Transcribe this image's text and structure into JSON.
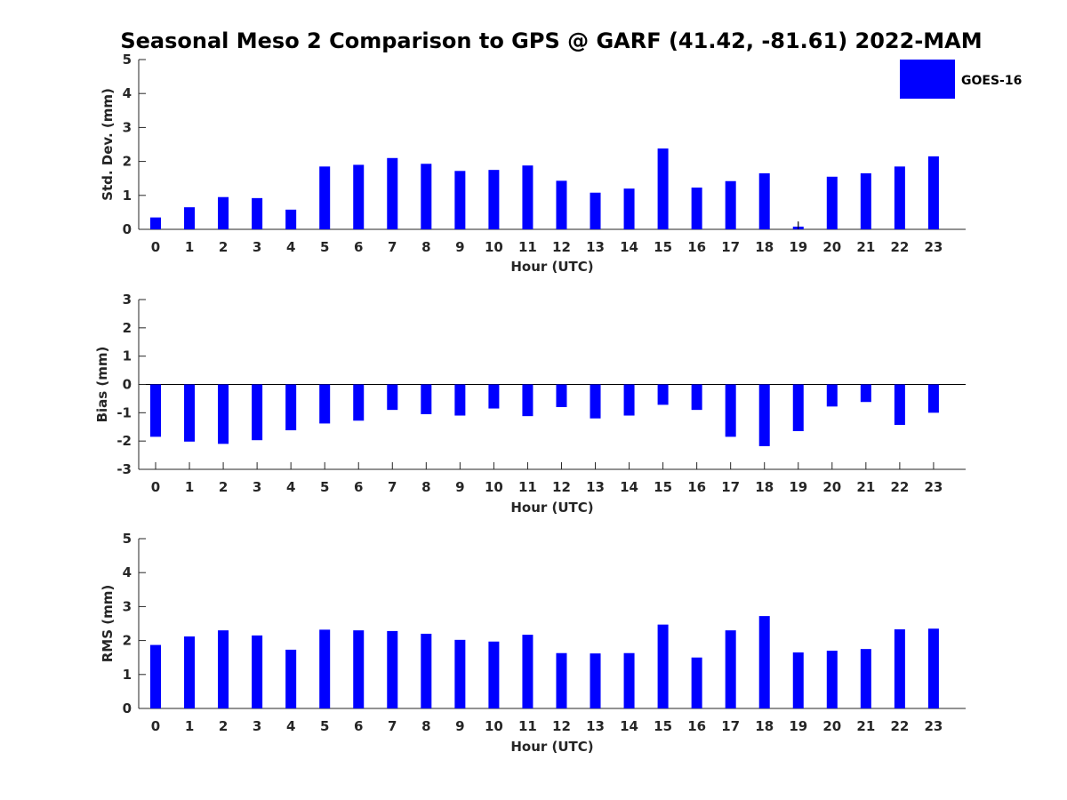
{
  "title": "Seasonal Meso 2 Comparison to GPS @ GARF (41.42, -81.61) 2022-MAM",
  "legend": {
    "label": "GOES-16",
    "color": "#0000ff"
  },
  "chart_data": [
    {
      "type": "bar",
      "name": "std-dev",
      "ylabel": "Std. Dev. (mm)",
      "xlabel": "Hour (UTC)",
      "ylim": [
        0,
        5
      ],
      "yticks": [
        "0",
        "1",
        "2",
        "3",
        "4",
        "5"
      ],
      "categories": [
        "0",
        "1",
        "2",
        "3",
        "4",
        "5",
        "6",
        "7",
        "8",
        "9",
        "10",
        "11",
        "12",
        "13",
        "14",
        "15",
        "16",
        "17",
        "18",
        "19",
        "20",
        "21",
        "22",
        "23"
      ],
      "series": [
        {
          "name": "GOES-16",
          "values": [
            0.35,
            0.65,
            0.95,
            0.92,
            0.58,
            1.85,
            1.9,
            2.1,
            1.93,
            1.72,
            1.75,
            1.88,
            1.43,
            1.08,
            1.2,
            2.38,
            1.23,
            1.42,
            1.65,
            0.08,
            1.55,
            1.65,
            1.85,
            2.15
          ]
        }
      ]
    },
    {
      "type": "bar",
      "name": "bias",
      "ylabel": "Bias (mm)",
      "xlabel": "Hour (UTC)",
      "ylim": [
        -3,
        3
      ],
      "yticks": [
        "-3",
        "-2",
        "-1",
        "0",
        "1",
        "2",
        "3"
      ],
      "categories": [
        "0",
        "1",
        "2",
        "3",
        "4",
        "5",
        "6",
        "7",
        "8",
        "9",
        "10",
        "11",
        "12",
        "13",
        "14",
        "15",
        "16",
        "17",
        "18",
        "19",
        "20",
        "21",
        "22",
        "23"
      ],
      "series": [
        {
          "name": "GOES-16",
          "values": [
            -1.85,
            -2.02,
            -2.1,
            -1.97,
            -1.62,
            -1.38,
            -1.28,
            -0.9,
            -1.05,
            -1.1,
            -0.85,
            -1.12,
            -0.8,
            -1.2,
            -1.1,
            -0.72,
            -0.9,
            -1.85,
            -2.18,
            -1.65,
            -0.78,
            -0.62,
            -1.43,
            -1.0
          ]
        }
      ]
    },
    {
      "type": "bar",
      "name": "rms",
      "ylabel": "RMS (mm)",
      "xlabel": "Hour (UTC)",
      "ylim": [
        0,
        5
      ],
      "yticks": [
        "0",
        "1",
        "2",
        "3",
        "4",
        "5"
      ],
      "categories": [
        "0",
        "1",
        "2",
        "3",
        "4",
        "5",
        "6",
        "7",
        "8",
        "9",
        "10",
        "11",
        "12",
        "13",
        "14",
        "15",
        "16",
        "17",
        "18",
        "19",
        "20",
        "21",
        "22",
        "23"
      ],
      "series": [
        {
          "name": "GOES-16",
          "values": [
            1.87,
            2.12,
            2.3,
            2.15,
            1.73,
            2.32,
            2.3,
            2.28,
            2.2,
            2.02,
            1.97,
            2.17,
            1.63,
            1.62,
            1.63,
            2.47,
            1.5,
            2.3,
            2.72,
            1.65,
            1.7,
            1.75,
            2.33,
            2.35
          ]
        }
      ]
    }
  ]
}
